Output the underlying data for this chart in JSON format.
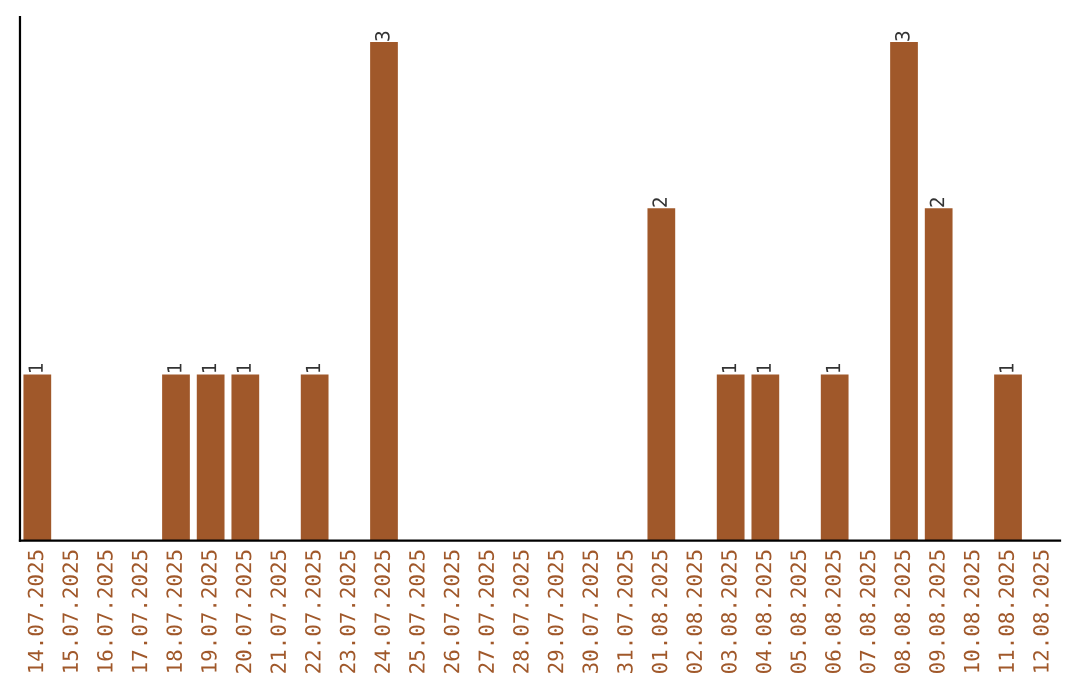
{
  "chart_data": {
    "type": "bar",
    "categories": [
      "14.07.2025",
      "15.07.2025",
      "16.07.2025",
      "17.07.2025",
      "18.07.2025",
      "19.07.2025",
      "20.07.2025",
      "21.07.2025",
      "22.07.2025",
      "23.07.2025",
      "24.07.2025",
      "25.07.2025",
      "26.07.2025",
      "27.07.2025",
      "28.07.2025",
      "29.07.2025",
      "30.07.2025",
      "31.07.2025",
      "01.08.2025",
      "02.08.2025",
      "03.08.2025",
      "04.08.2025",
      "05.08.2025",
      "06.08.2025",
      "07.08.2025",
      "08.08.2025",
      "09.08.2025",
      "10.08.2025",
      "11.08.2025",
      "12.08.2025"
    ],
    "values": [
      1,
      0,
      0,
      0,
      1,
      1,
      1,
      0,
      1,
      0,
      3,
      0,
      0,
      0,
      0,
      0,
      0,
      0,
      2,
      0,
      1,
      1,
      0,
      1,
      0,
      3,
      2,
      0,
      1,
      0
    ],
    "value_labels": [
      "1",
      null,
      null,
      null,
      "1",
      "1",
      "1",
      null,
      "1",
      null,
      "3",
      null,
      null,
      null,
      null,
      null,
      null,
      null,
      "2",
      null,
      "1",
      "1",
      null,
      "1",
      null,
      "3",
      "2",
      null,
      "1",
      null
    ],
    "color": "#a0582a",
    "tick_labels": "x",
    "grid": false
  }
}
